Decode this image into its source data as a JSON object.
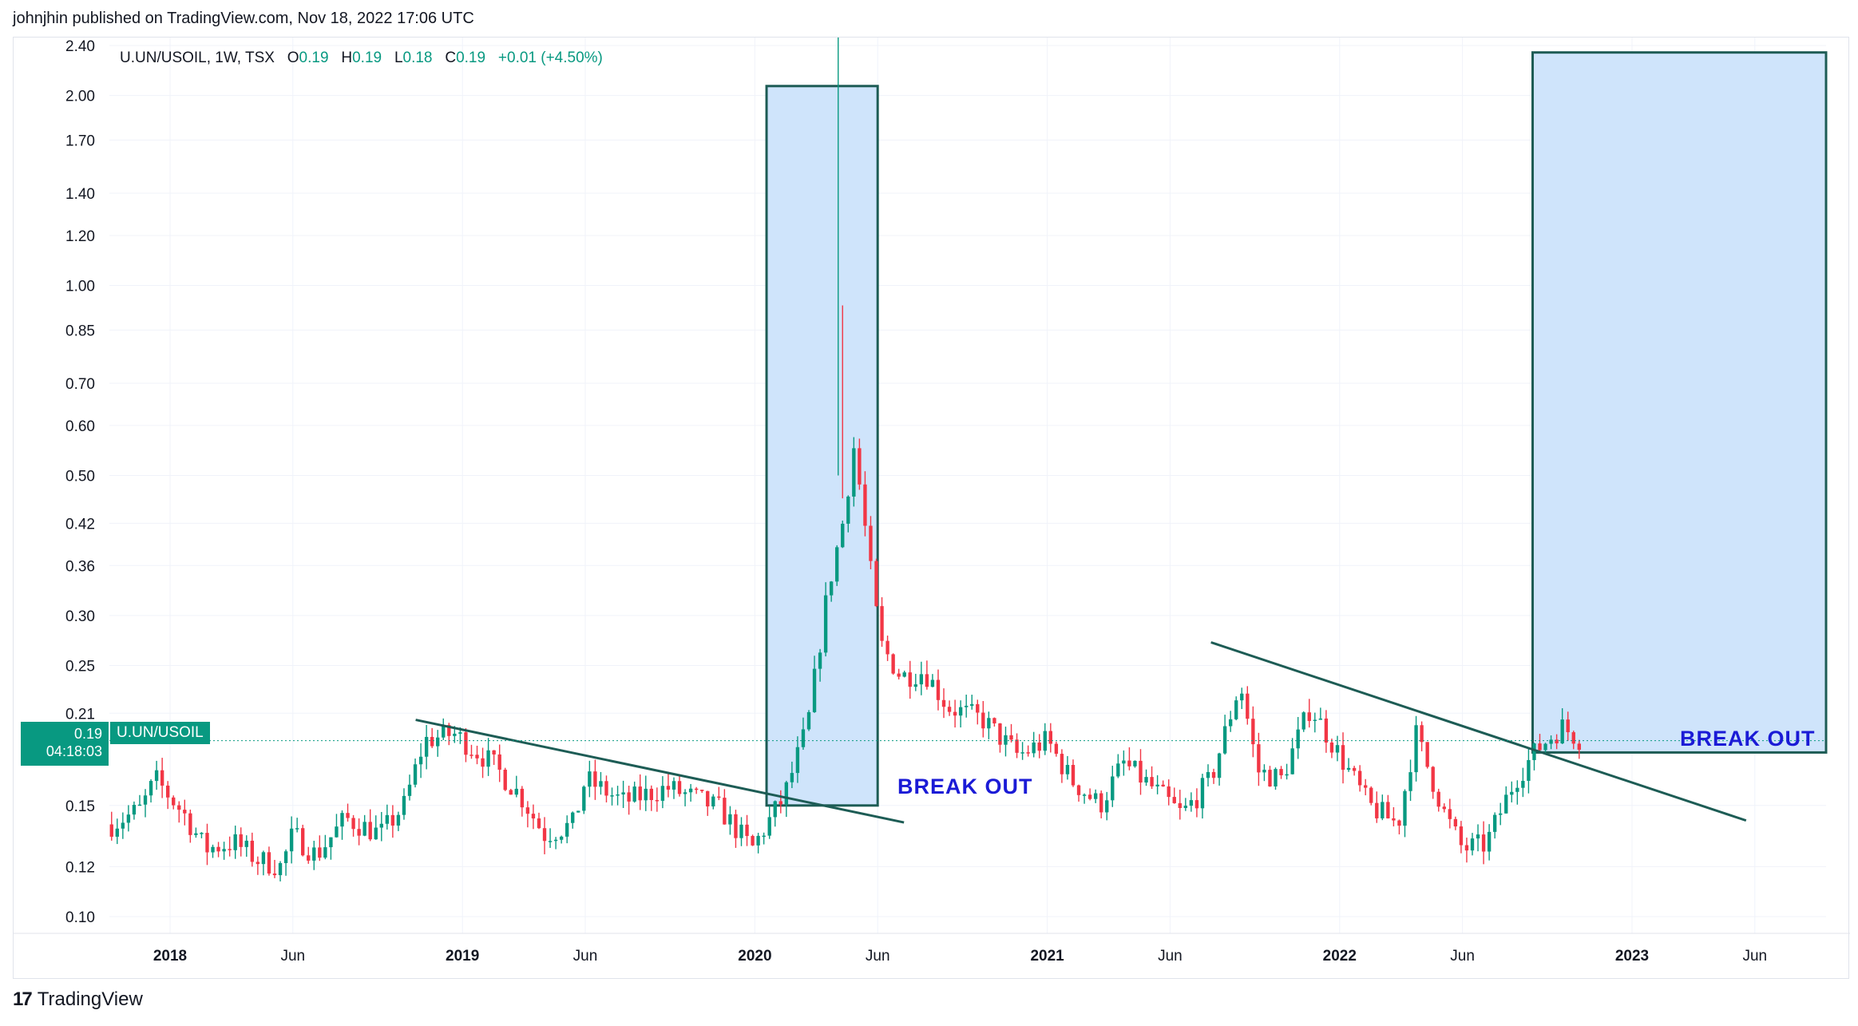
{
  "header": {
    "publisher": "johnjhin published on TradingView.com, Nov 18, 2022 17:06 UTC"
  },
  "legend": {
    "symbol": "U.UN/USOIL, 1W, TSX",
    "o_label": "O",
    "o_value": "0.19",
    "h_label": "H",
    "h_value": "0.19",
    "l_label": "L",
    "l_value": "0.18",
    "c_label": "C",
    "c_value": "0.19",
    "change": "+0.01 (+4.50%)"
  },
  "price_tag": {
    "price": "0.19",
    "countdown": "04:18:03",
    "symbol": "U.UN/USOIL"
  },
  "annotations": {
    "breakout_1": "BREAK OUT",
    "breakout_2": "BREAK OUT"
  },
  "footer": {
    "brand": "TradingView"
  },
  "colors": {
    "up": "#089981",
    "down": "#f23645",
    "trendline": "#1d5c55",
    "box_fill": "#cfe4fb",
    "box_stroke": "#1d5c55",
    "note": "#1b1bd6"
  },
  "chart_data": {
    "type": "candlestick",
    "scale": "log",
    "y_ticks": [
      "2.40",
      "2.00",
      "1.70",
      "1.40",
      "1.20",
      "1.00",
      "0.85",
      "0.70",
      "0.60",
      "0.50",
      "0.42",
      "0.36",
      "0.30",
      "0.25",
      "0.21",
      "0.15",
      "0.12",
      "0.10"
    ],
    "x_ticks": [
      {
        "label": "2018",
        "bold": true,
        "t": 2018.0
      },
      {
        "label": "Jun",
        "bold": false,
        "t": 2018.42
      },
      {
        "label": "2019",
        "bold": true,
        "t": 2019.0
      },
      {
        "label": "Jun",
        "bold": false,
        "t": 2019.42
      },
      {
        "label": "2020",
        "bold": true,
        "t": 2020.0
      },
      {
        "label": "Jun",
        "bold": false,
        "t": 2020.42
      },
      {
        "label": "2021",
        "bold": true,
        "t": 2021.0
      },
      {
        "label": "Jun",
        "bold": false,
        "t": 2021.42
      },
      {
        "label": "2022",
        "bold": true,
        "t": 2022.0
      },
      {
        "label": "Jun",
        "bold": false,
        "t": 2022.42
      },
      {
        "label": "2023",
        "bold": true,
        "t": 2023.0
      },
      {
        "label": "Jun",
        "bold": false,
        "t": 2023.42
      }
    ],
    "close_anchors": [
      [
        2017.8,
        0.14
      ],
      [
        2017.9,
        0.148
      ],
      [
        2017.95,
        0.165
      ],
      [
        2018.05,
        0.145
      ],
      [
        2018.12,
        0.128
      ],
      [
        2018.22,
        0.131
      ],
      [
        2018.3,
        0.123
      ],
      [
        2018.38,
        0.12
      ],
      [
        2018.42,
        0.135
      ],
      [
        2018.5,
        0.125
      ],
      [
        2018.6,
        0.143
      ],
      [
        2018.72,
        0.135
      ],
      [
        2018.8,
        0.15
      ],
      [
        2018.87,
        0.19
      ],
      [
        2018.97,
        0.195
      ],
      [
        2019.1,
        0.175
      ],
      [
        2019.2,
        0.155
      ],
      [
        2019.28,
        0.135
      ],
      [
        2019.38,
        0.14
      ],
      [
        2019.42,
        0.165
      ],
      [
        2019.55,
        0.152
      ],
      [
        2019.7,
        0.16
      ],
      [
        2019.78,
        0.155
      ],
      [
        2019.88,
        0.148
      ],
      [
        2019.99,
        0.128
      ],
      [
        2020.1,
        0.155
      ],
      [
        2020.18,
        0.2
      ],
      [
        2020.25,
        0.33
      ],
      [
        2020.3,
        0.42
      ],
      [
        2020.34,
        0.56
      ],
      [
        2020.4,
        0.34
      ],
      [
        2020.43,
        0.27
      ],
      [
        2020.5,
        0.24
      ],
      [
        2020.58,
        0.245
      ],
      [
        2020.66,
        0.215
      ],
      [
        2020.78,
        0.205
      ],
      [
        2020.9,
        0.18
      ],
      [
        2021.0,
        0.19
      ],
      [
        2021.08,
        0.165
      ],
      [
        2021.18,
        0.15
      ],
      [
        2021.26,
        0.175
      ],
      [
        2021.36,
        0.16
      ],
      [
        2021.46,
        0.145
      ],
      [
        2021.56,
        0.165
      ],
      [
        2021.66,
        0.235
      ],
      [
        2021.72,
        0.17
      ],
      [
        2021.8,
        0.165
      ],
      [
        2021.9,
        0.215
      ],
      [
        2022.0,
        0.18
      ],
      [
        2022.1,
        0.15
      ],
      [
        2022.2,
        0.14
      ],
      [
        2022.26,
        0.195
      ],
      [
        2022.36,
        0.145
      ],
      [
        2022.42,
        0.128
      ],
      [
        2022.5,
        0.13
      ],
      [
        2022.6,
        0.165
      ],
      [
        2022.68,
        0.185
      ],
      [
        2022.76,
        0.2
      ],
      [
        2022.83,
        0.19
      ]
    ],
    "boxes": [
      {
        "t1": 2020.04,
        "t2": 2020.42,
        "p1": 0.15,
        "p2": 2.07
      },
      {
        "t1": 2022.66,
        "t2": 3022.0,
        "p1": 0.182,
        "p2": 2.34
      }
    ],
    "trendlines": [
      {
        "t1": 2018.84,
        "p1": 0.205,
        "t2": 2020.51,
        "p2": 0.141
      },
      {
        "t1": 2021.56,
        "p1": 0.272,
        "t2": 2023.39,
        "p2": 0.142
      }
    ]
  }
}
